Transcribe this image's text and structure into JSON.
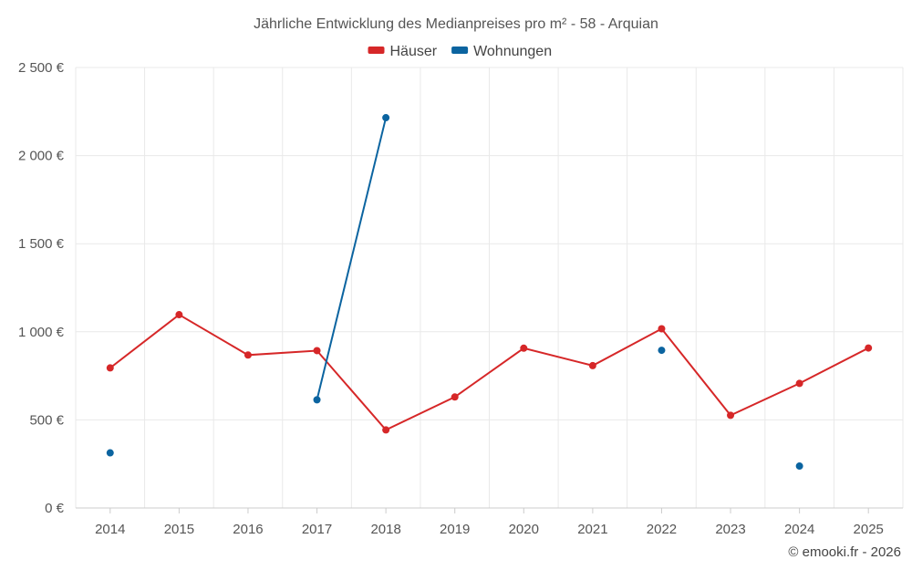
{
  "chart_data": {
    "type": "line",
    "title": "Jährliche Entwicklung des Medianpreises pro m² - 58 - Arquian",
    "categories": [
      "2014",
      "2015",
      "2016",
      "2017",
      "2018",
      "2019",
      "2020",
      "2021",
      "2022",
      "2023",
      "2024",
      "2025"
    ],
    "series": [
      {
        "name": "Häuser",
        "color": "#d62728",
        "values": [
          795,
          1097,
          868,
          893,
          443,
          630,
          907,
          808,
          1017,
          526,
          707,
          908
        ]
      },
      {
        "name": "Wohnungen",
        "color": "#0b64a0",
        "values": [
          313,
          null,
          null,
          614,
          2215,
          null,
          null,
          null,
          895,
          null,
          238,
          null
        ]
      }
    ],
    "ylim": [
      0,
      2500
    ],
    "yticks": [
      0,
      500,
      1000,
      1500,
      2000,
      2500
    ],
    "ytick_labels": [
      "0 €",
      "500 €",
      "1 000 €",
      "1 500 €",
      "2 000 €",
      "2 500 €"
    ],
    "xlabel": "",
    "ylabel": "",
    "grid": true,
    "legend_position": "top-center"
  },
  "credit": "© emooki.fr - 2026"
}
